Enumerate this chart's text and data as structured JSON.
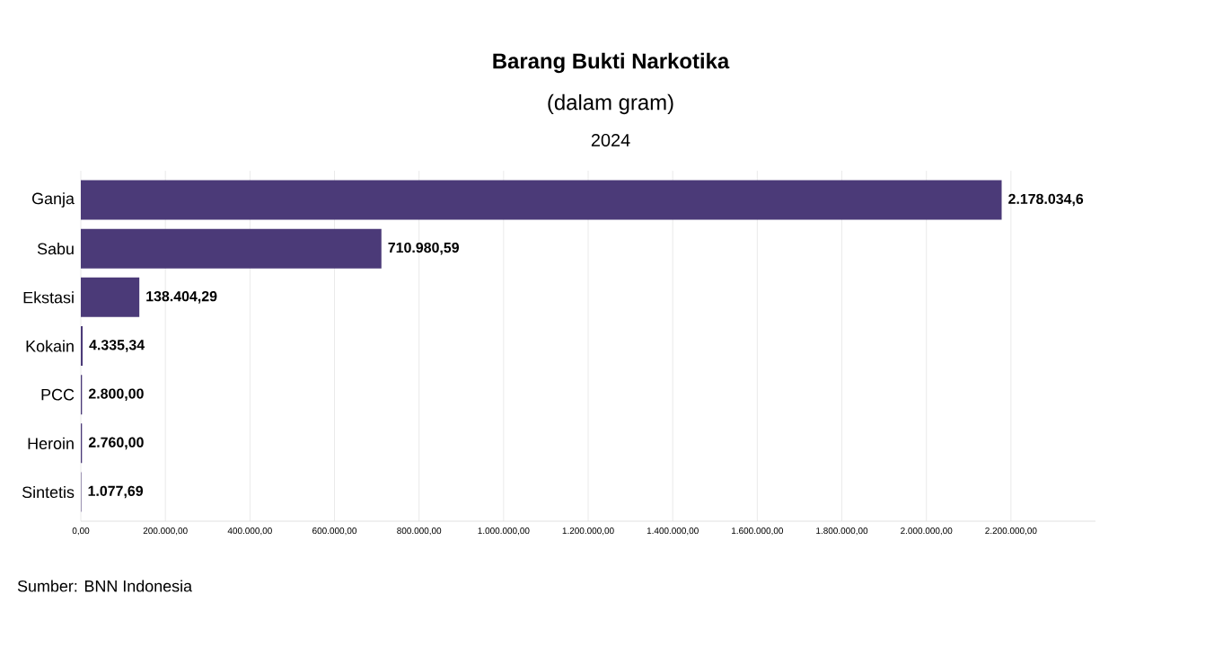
{
  "chart_data": {
    "type": "bar",
    "orientation": "horizontal",
    "title": "Barang Bukti Narkotika",
    "subtitle": "(dalam gram)",
    "xlabel": "2024",
    "categories": [
      "Ganja",
      "Sabu",
      "Ekstasi",
      "Kokain",
      "PCC",
      "Heroin",
      "Sintetis"
    ],
    "values": [
      2178034.6,
      710980.59,
      138404.29,
      4335.34,
      2800.0,
      2760.0,
      1077.69
    ],
    "value_labels": [
      "2.178.034,6",
      "710.980,59",
      "138.404,29",
      "4.335,34",
      "2.800,00",
      "2.760,00",
      "1.077,69"
    ],
    "color": "#4b3a78",
    "xlim": [
      0,
      2400000
    ],
    "xticks": [
      {
        "value": 0,
        "label": "0,00"
      },
      {
        "value": 200000,
        "label": "200.000,00"
      },
      {
        "value": 400000,
        "label": "400.000,00"
      },
      {
        "value": 600000,
        "label": "600.000,00"
      },
      {
        "value": 800000,
        "label": "800.000,00"
      },
      {
        "value": 1000000,
        "label": "1.000.000,00"
      },
      {
        "value": 1200000,
        "label": "1.200.000,00"
      },
      {
        "value": 1400000,
        "label": "1.400.000,00"
      },
      {
        "value": 1600000,
        "label": "1.600.000,00"
      },
      {
        "value": 1800000,
        "label": "1.800.000,00"
      },
      {
        "value": 2000000,
        "label": "2.000.000,00"
      },
      {
        "value": 2200000,
        "label": "2.200.000,00"
      }
    ],
    "grid": "x",
    "annotations": [
      "Sumber: BNN Indonesia"
    ]
  }
}
